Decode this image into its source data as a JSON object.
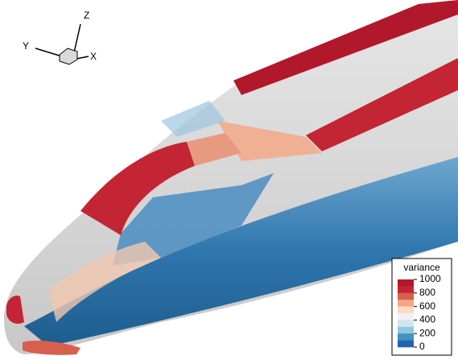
{
  "axes_triad": {
    "z_label": "Z",
    "y_label": "Y",
    "x_label": "X"
  },
  "legend": {
    "title": "variance",
    "ticks": [
      1000,
      800,
      600,
      400,
      200,
      0
    ],
    "colors": [
      "#b2182b",
      "#c42534",
      "#d6604d",
      "#f4a582",
      "#fddbc7",
      "#f2f2f2",
      "#d1e5f0",
      "#92c5de",
      "#4393c3",
      "#2166ac"
    ]
  }
}
